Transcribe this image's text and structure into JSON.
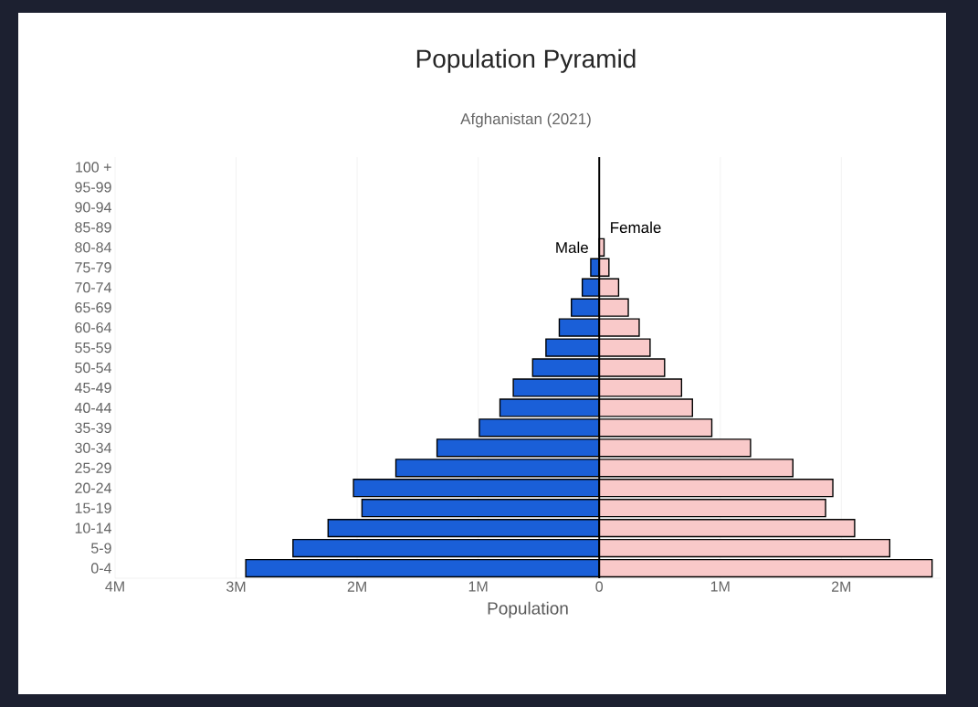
{
  "chart_data": {
    "type": "bar",
    "orientation": "horizontal",
    "stacked": true,
    "title": "Population Pyramid",
    "subtitle": "Afghanistan (2021)",
    "xlabel": "Population",
    "categories": [
      "100 +",
      "95-99",
      "90-94",
      "85-89",
      "80-84",
      "75-79",
      "70-74",
      "65-69",
      "60-64",
      "55-59",
      "50-54",
      "45-49",
      "40-44",
      "35-39",
      "30-34",
      "25-29",
      "20-24",
      "15-19",
      "10-14",
      "5-9",
      "0-4"
    ],
    "series": [
      {
        "name": "Male",
        "color": "#1a5fd8",
        "values": [
          null,
          null,
          null,
          null,
          null,
          -70000,
          -140000,
          -230000,
          -330000,
          -440000,
          -550000,
          -710000,
          -820000,
          -990000,
          -1340000,
          -1680000,
          -2030000,
          -1960000,
          -2240000,
          -2530000,
          -2920000
        ]
      },
      {
        "name": "Female",
        "color": "#f9c9c9",
        "values": [
          null,
          null,
          null,
          null,
          40000,
          80000,
          160000,
          240000,
          330000,
          420000,
          540000,
          680000,
          770000,
          930000,
          1250000,
          1600000,
          1930000,
          1870000,
          2110000,
          2400000,
          2750000
        ]
      }
    ],
    "xlim": [
      -4000000,
      2820000
    ],
    "xticks": [
      {
        "value": -4000000,
        "label": "4M"
      },
      {
        "value": -3000000,
        "label": "3M"
      },
      {
        "value": -2000000,
        "label": "2M"
      },
      {
        "value": -1000000,
        "label": "1M"
      },
      0,
      {
        "value": 1000000,
        "label": "1M"
      },
      {
        "value": 2000000,
        "label": "2M"
      }
    ],
    "grid": "x"
  }
}
